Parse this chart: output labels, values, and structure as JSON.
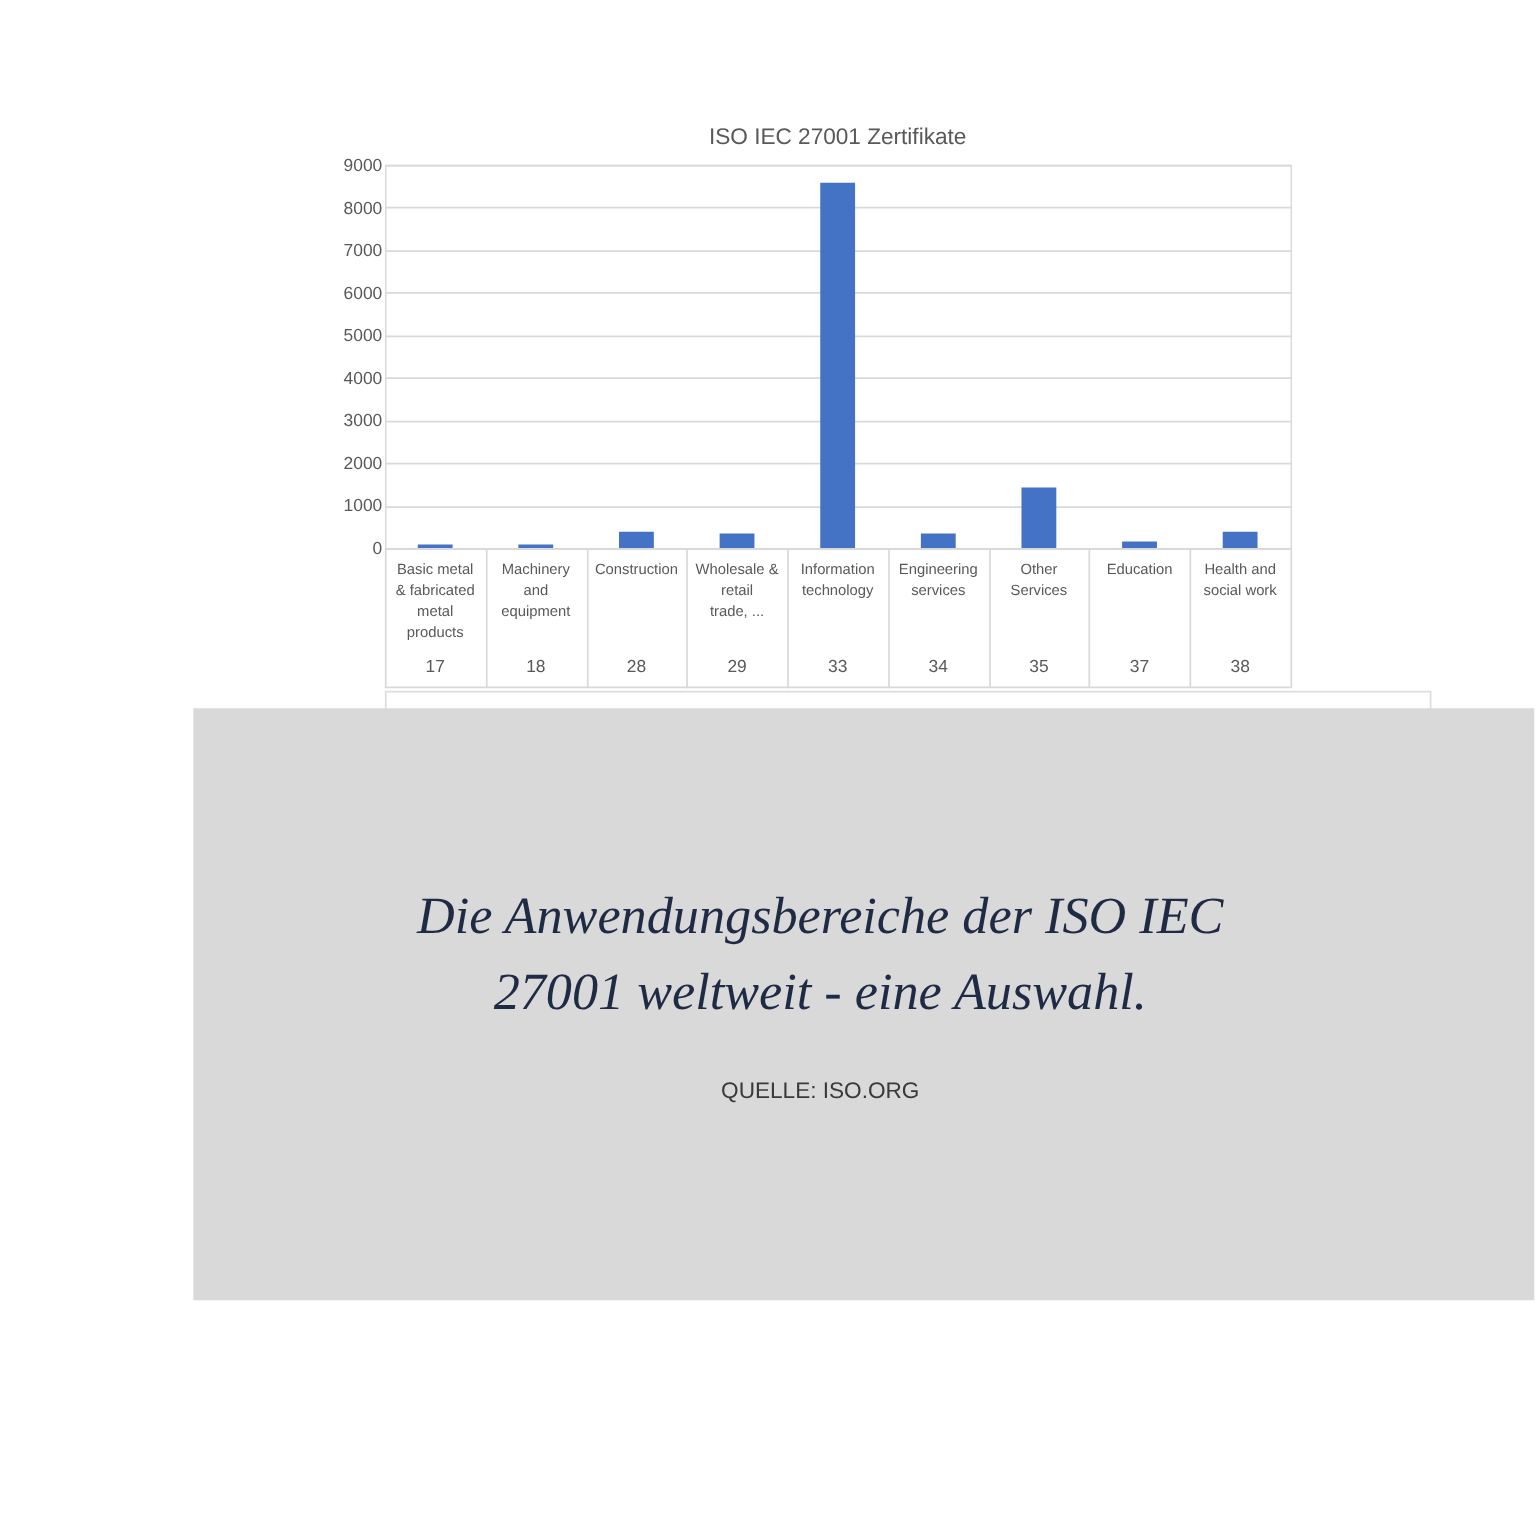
{
  "chart_data": {
    "type": "bar",
    "title": "ISO IEC 27001 Zertifikate",
    "categories": [
      "Basic metal & fabricated metal products",
      "Machinery and equipment",
      "Construction",
      "Wholesale & retail trade, ...",
      "Information technology",
      "Engineering services",
      "Other Services",
      "Education",
      "Health and social work"
    ],
    "values": [
      80,
      80,
      380,
      340,
      8580,
      340,
      1420,
      150,
      380
    ],
    "color": "#4472c4",
    "ylim": [
      0,
      9000
    ],
    "yticks": [
      0,
      1000,
      2000,
      3000,
      4000,
      5000,
      6000,
      7000,
      8000,
      9000
    ],
    "grid": "y",
    "annotations": [
      "17",
      "18",
      "28",
      "29",
      "33",
      "34",
      "35",
      "37",
      "38",
      "Die Anwendungsbereiche der ISO IEC 27001 weltweit - eine Auswahl.",
      "QUELLE: ISO.ORG"
    ]
  }
}
